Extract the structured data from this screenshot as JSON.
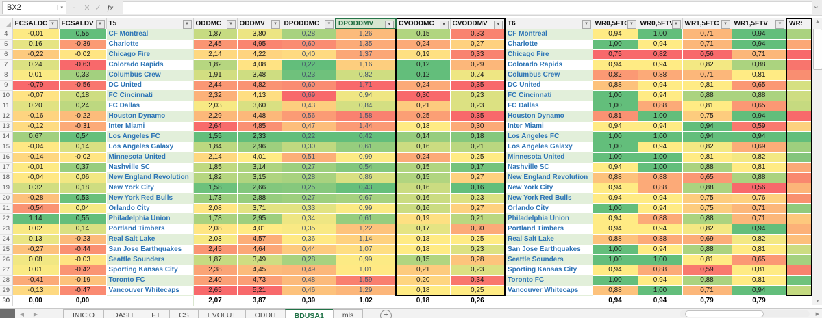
{
  "formula_bar": {
    "name_box": "BX2",
    "cancel_label": "✕",
    "enter_label": "✓",
    "fx_label": "fx",
    "formula_value": ""
  },
  "scale_colors": {
    "red": "#F8696B",
    "yellow": "#FFEB84",
    "green": "#63BE7B",
    "band": "#E2EFDA"
  },
  "columns": [
    {
      "key": "FCSALDC",
      "label": "FCSALDC",
      "kind": "scale",
      "dir": "asc"
    },
    {
      "key": "FCSALDV",
      "label": "FCSALDV",
      "kind": "scale",
      "dir": "asc"
    },
    {
      "key": "T5",
      "label": "T5",
      "kind": "team"
    },
    {
      "key": "ODDMC",
      "label": "ODDMC",
      "kind": "scale",
      "dir": "desc"
    },
    {
      "key": "ODDMV",
      "label": "ODDMV",
      "kind": "scale",
      "dir": "desc"
    },
    {
      "key": "DPODDMC",
      "label": "DPODDMC",
      "kind": "scale",
      "dir": "desc",
      "text_color": "#44546A"
    },
    {
      "key": "DPODDMV",
      "label": "DPODDMV",
      "kind": "scale",
      "dir": "desc",
      "text_color": "#44546A",
      "selected": true
    },
    {
      "key": "CVODDMC",
      "label": "CVODDMC",
      "kind": "scale",
      "dir": "desc",
      "box": "b1",
      "box_edge": "l"
    },
    {
      "key": "CVODDMV",
      "label": "CVODDMV",
      "kind": "scale",
      "dir": "desc",
      "box": "b1",
      "box_edge": "r"
    },
    {
      "key": "T6",
      "label": "T6",
      "kind": "team"
    },
    {
      "key": "WR05FTC",
      "label": "WR0,5FTC",
      "kind": "scale",
      "dir": "asc"
    },
    {
      "key": "WR05FTV",
      "label": "WR0,5FTV",
      "kind": "scale",
      "dir": "asc"
    },
    {
      "key": "WR15FTC",
      "label": "WR1,5FTC",
      "kind": "scale",
      "dir": "asc"
    },
    {
      "key": "WR15FTV",
      "label": "WR1,5FTV",
      "kind": "scale",
      "dir": "asc"
    },
    {
      "key": "WRX",
      "label": "WR:",
      "kind": "colorbar",
      "box": "b2",
      "box_edge": "lr",
      "no_filter": true
    }
  ],
  "rows": [
    {
      "num": "4",
      "FCSALDC": "-0,01",
      "FCSALDV": "0,55",
      "T5": "CF Montreal",
      "ODDMC": "1,87",
      "ODDMV": "3,80",
      "DPODDMC": "0,28",
      "DPODDMV": "1,26",
      "CVODDMC": "0,15",
      "CVODDMV": "0,33",
      "T6": "CF Montreal",
      "WR05FTC": "0,94",
      "WR05FTV": "1,00",
      "WR15FTC": "0,71",
      "WR15FTV": "0,94",
      "WRX": "#aad27f"
    },
    {
      "num": "5",
      "FCSALDC": "0,16",
      "FCSALDV": "-0,39",
      "T5": "Charlotte",
      "ODDMC": "2,45",
      "ODDMV": "4,95",
      "DPODDMC": "0,60",
      "DPODDMV": "1,35",
      "CVODDMC": "0,24",
      "CVODDMV": "0,27",
      "T6": "Charlotte",
      "WR05FTC": "1,00",
      "WR05FTV": "0,94",
      "WR15FTC": "0,71",
      "WR15FTV": "0,94",
      "WRX": "#fba876"
    },
    {
      "num": "6",
      "FCSALDC": "-0,22",
      "FCSALDV": "-0,02",
      "T5": "Chicago Fire",
      "ODDMC": "2,14",
      "ODDMV": "4,22",
      "DPODDMC": "0,40",
      "DPODDMV": "1,37",
      "CVODDMC": "0,19",
      "CVODDMV": "0,33",
      "T6": "Chicago Fire",
      "WR05FTC": "0,75",
      "WR05FTV": "0,82",
      "WR15FTC": "0,56",
      "WR15FTV": "0,71",
      "WRX": "#f8696b"
    },
    {
      "num": "7",
      "FCSALDC": "0,24",
      "FCSALDV": "-0,63",
      "T5": "Colorado Rapids",
      "ODDMC": "1,82",
      "ODDMV": "4,08",
      "DPODDMC": "0,22",
      "DPODDMV": "1,16",
      "CVODDMC": "0,12",
      "CVODDMV": "0,29",
      "T6": "Colorado Rapids",
      "WR05FTC": "0,94",
      "WR05FTV": "0,94",
      "WR15FTC": "0,82",
      "WR15FTV": "0,88",
      "WRX": "#f8756d"
    },
    {
      "num": "8",
      "FCSALDC": "0,01",
      "FCSALDV": "0,33",
      "T5": "Columbus Crew",
      "ODDMC": "1,91",
      "ODDMV": "3,48",
      "DPODDMC": "0,23",
      "DPODDMV": "0,82",
      "CVODDMC": "0,12",
      "CVODDMV": "0,24",
      "T6": "Columbus Crew",
      "WR05FTC": "0,82",
      "WR05FTV": "0,88",
      "WR15FTC": "0,71",
      "WR15FTV": "0,81",
      "WRX": "#f98e71"
    },
    {
      "num": "9",
      "FCSALDC": "-0,79",
      "FCSALDV": "-0,56",
      "T5": "DC United",
      "ODDMC": "2,44",
      "ODDMV": "4,82",
      "DPODDMC": "0,60",
      "DPODDMV": "1,71",
      "CVODDMC": "0,24",
      "CVODDMV": "0,35",
      "T6": "DC United",
      "WR05FTC": "0,88",
      "WR05FTV": "0,94",
      "WR15FTC": "0,81",
      "WR15FTV": "0,65",
      "WRX": "#d6e081"
    },
    {
      "num": "10",
      "FCSALDC": "-0,07",
      "FCSALDV": "0,18",
      "T5": "FC Cincinnati",
      "ODDMC": "2,32",
      "ODDMV": "4,13",
      "DPODDMC": "0,69",
      "DPODDMV": "0,94",
      "CVODDMC": "0,30",
      "CVODDMV": "0,23",
      "T6": "FC Cincinnati",
      "WR05FTC": "1,00",
      "WR05FTV": "0,94",
      "WR15FTC": "0,88",
      "WR15FTV": "0,88",
      "WRX": "#cedd82"
    },
    {
      "num": "11",
      "FCSALDC": "0,20",
      "FCSALDV": "0,24",
      "T5": "FC Dallas",
      "ODDMC": "2,03",
      "ODDMV": "3,60",
      "DPODDMC": "0,43",
      "DPODDMV": "0,84",
      "CVODDMC": "0,21",
      "CVODDMV": "0,23",
      "T6": "FC Dallas",
      "WR05FTC": "1,00",
      "WR05FTV": "0,88",
      "WR15FTC": "0,81",
      "WR15FTV": "0,65",
      "WRX": "#c6da80"
    },
    {
      "num": "12",
      "FCSALDC": "-0,16",
      "FCSALDV": "-0,22",
      "T5": "Houston Dynamo",
      "ODDMC": "2,29",
      "ODDMV": "4,48",
      "DPODDMC": "0,56",
      "DPODDMV": "1,58",
      "CVODDMC": "0,25",
      "CVODDMV": "0,35",
      "T6": "Houston Dynamo",
      "WR05FTC": "0,81",
      "WR05FTV": "1,00",
      "WR15FTC": "0,75",
      "WR15FTV": "0,94",
      "WRX": "#f8696b"
    },
    {
      "num": "13",
      "FCSALDC": "-0,12",
      "FCSALDV": "-0,31",
      "T5": "Inter Miami",
      "ODDMC": "2,64",
      "ODDMV": "4,85",
      "DPODDMC": "0,47",
      "DPODDMV": "1,44",
      "CVODDMC": "0,18",
      "CVODDMV": "0,30",
      "T6": "Inter Miami",
      "WR05FTC": "0,94",
      "WR05FTV": "0,94",
      "WR15FTC": "0,94",
      "WR15FTV": "0,59",
      "WRX": "#fdd17f"
    },
    {
      "num": "14",
      "FCSALDC": "0,67",
      "FCSALDV": "0,54",
      "T5": "Los Angeles FC",
      "ODDMC": "1,55",
      "ODDMV": "2,33",
      "DPODDMC": "0,22",
      "DPODDMV": "0,42",
      "CVODDMC": "0,14",
      "CVODDMV": "0,18",
      "T6": "Los Angeles FC",
      "WR05FTC": "1,00",
      "WR05FTV": "1,00",
      "WR15FTC": "0,94",
      "WR15FTV": "0,94",
      "WRX": "#63be7b"
    },
    {
      "num": "15",
      "FCSALDC": "-0,04",
      "FCSALDV": "0,14",
      "T5": "Los Angeles Galaxy",
      "ODDMC": "1,84",
      "ODDMV": "2,96",
      "DPODDMC": "0,30",
      "DPODDMV": "0,61",
      "CVODDMC": "0,16",
      "CVODDMV": "0,21",
      "T6": "Los Angeles Galaxy",
      "WR05FTC": "1,00",
      "WR05FTV": "0,94",
      "WR15FTC": "0,82",
      "WR15FTV": "0,69",
      "WRX": "#9ecf7e"
    },
    {
      "num": "16",
      "FCSALDC": "-0,14",
      "FCSALDV": "-0,02",
      "T5": "Minnesota United",
      "ODDMC": "2,14",
      "ODDMV": "4,01",
      "DPODDMC": "0,51",
      "DPODDMV": "0,99",
      "CVODDMC": "0,24",
      "CVODDMV": "0,25",
      "T6": "Minnesota United",
      "WR05FTC": "1,00",
      "WR05FTV": "1,00",
      "WR15FTC": "0,81",
      "WR15FTV": "0,82",
      "WRX": "#84c57c"
    },
    {
      "num": "17",
      "FCSALDC": "-0,01",
      "FCSALDV": "0,37",
      "T5": "Nashville SC",
      "ODDMC": "1,85",
      "ODDMV": "3,14",
      "DPODDMC": "0,27",
      "DPODDMV": "0,54",
      "CVODDMC": "0,15",
      "CVODDMV": "0,17",
      "T6": "Nashville SC",
      "WR05FTC": "0,94",
      "WR05FTV": "1,00",
      "WR15FTC": "0,88",
      "WR15FTV": "0,81",
      "WRX": "#fba977"
    },
    {
      "num": "18",
      "FCSALDC": "-0,04",
      "FCSALDV": "0,06",
      "T5": "New England Revolution",
      "ODDMC": "1,82",
      "ODDMV": "3,15",
      "DPODDMC": "0,28",
      "DPODDMV": "0,86",
      "CVODDMC": "0,15",
      "CVODDMV": "0,27",
      "T6": "New England Revolution",
      "WR05FTC": "0,88",
      "WR05FTV": "0,88",
      "WR15FTC": "0,65",
      "WR15FTV": "0,88",
      "WRX": "#f9886f"
    },
    {
      "num": "19",
      "FCSALDC": "0,32",
      "FCSALDV": "0,18",
      "T5": "New York City",
      "ODDMC": "1,58",
      "ODDMV": "2,66",
      "DPODDMC": "0,25",
      "DPODDMV": "0,43",
      "CVODDMC": "0,16",
      "CVODDMV": "0,16",
      "T6": "New York City",
      "WR05FTC": "0,94",
      "WR05FTV": "0,88",
      "WR15FTC": "0,88",
      "WR15FTV": "0,56",
      "WRX": "#fcb579"
    },
    {
      "num": "20",
      "FCSALDC": "-0,28",
      "FCSALDV": "0,53",
      "T5": "New York Red Bulls",
      "ODDMC": "1,73",
      "ODDMV": "2,88",
      "DPODDMC": "0,27",
      "DPODDMV": "0,67",
      "CVODDMC": "0,16",
      "CVODDMV": "0,23",
      "T6": "New York Red Bulls",
      "WR05FTC": "0,94",
      "WR05FTV": "0,94",
      "WR15FTC": "0,75",
      "WR15FTV": "0,76",
      "WRX": "#f9906f"
    },
    {
      "num": "21",
      "FCSALDC": "-0,54",
      "FCSALDV": "0,04",
      "T5": "Orlando City",
      "ODDMC": "2,08",
      "ODDMV": "3,71",
      "DPODDMC": "0,33",
      "DPODDMV": "0,99",
      "CVODDMC": "0,16",
      "CVODDMV": "0,27",
      "T6": "Orlando City",
      "WR05FTC": "1,00",
      "WR05FTV": "0,94",
      "WR15FTC": "0,75",
      "WR15FTV": "0,71",
      "WRX": "#90ca7d"
    },
    {
      "num": "22",
      "FCSALDC": "1,14",
      "FCSALDV": "0,55",
      "T5": "Philadelphia Union",
      "ODDMC": "1,78",
      "ODDMV": "2,95",
      "DPODDMC": "0,34",
      "DPODDMV": "0,61",
      "CVODDMC": "0,19",
      "CVODDMV": "0,21",
      "T6": "Philadelphia Union",
      "WR05FTC": "0,94",
      "WR05FTV": "0,88",
      "WR15FTC": "0,88",
      "WR15FTV": "0,71",
      "WRX": "#fdc87d"
    },
    {
      "num": "23",
      "FCSALDC": "0,02",
      "FCSALDV": "0,14",
      "T5": "Portland Timbers",
      "ODDMC": "2,08",
      "ODDMV": "4,01",
      "DPODDMC": "0,35",
      "DPODDMV": "1,22",
      "CVODDMC": "0,17",
      "CVODDMV": "0,30",
      "T6": "Portland Timbers",
      "WR05FTC": "0,94",
      "WR05FTV": "0,94",
      "WR15FTC": "0,82",
      "WR15FTV": "0,94",
      "WRX": "#fcb178"
    },
    {
      "num": "24",
      "FCSALDC": "0,13",
      "FCSALDV": "-0,23",
      "T5": "Real Salt Lake",
      "ODDMC": "2,03",
      "ODDMV": "4,57",
      "DPODDMC": "0,36",
      "DPODDMV": "1,14",
      "CVODDMC": "0,18",
      "CVODDMV": "0,25",
      "T6": "Real Salt Lake",
      "WR05FTC": "0,88",
      "WR05FTV": "0,88",
      "WR15FTC": "0,69",
      "WR15FTV": "0,82",
      "WRX": "#fdbf7b"
    },
    {
      "num": "25",
      "FCSALDC": "-0,27",
      "FCSALDV": "-0,44",
      "T5": "San Jose Earthquakes",
      "ODDMC": "2,45",
      "ODDMV": "4,64",
      "DPODDMC": "0,44",
      "DPODDMV": "1,07",
      "CVODDMC": "0,18",
      "CVODDMV": "0,23",
      "T6": "San Jose Earthquakes",
      "WR05FTC": "1,00",
      "WR05FTV": "0,94",
      "WR15FTC": "0,88",
      "WR15FTV": "0,81",
      "WRX": "#cddc81"
    },
    {
      "num": "26",
      "FCSALDC": "0,08",
      "FCSALDV": "-0,03",
      "T5": "Seattle Sounders",
      "ODDMC": "1,87",
      "ODDMV": "3,49",
      "DPODDMC": "0,28",
      "DPODDMV": "0,99",
      "CVODDMC": "0,15",
      "CVODDMV": "0,28",
      "T6": "Seattle Sounders",
      "WR05FTC": "1,00",
      "WR05FTV": "1,00",
      "WR15FTC": "0,81",
      "WR15FTV": "0,65",
      "WRX": "#a5d17f"
    },
    {
      "num": "27",
      "FCSALDC": "0,01",
      "FCSALDV": "-0,42",
      "T5": "Sporting Kansas City",
      "ODDMC": "2,38",
      "ODDMV": "4,45",
      "DPODDMC": "0,49",
      "DPODDMV": "1,01",
      "CVODDMC": "0,21",
      "CVODDMV": "0,23",
      "T6": "Sporting Kansas City",
      "WR05FTC": "0,94",
      "WR05FTV": "0,88",
      "WR15FTC": "0,59",
      "WR15FTV": "0,81",
      "WRX": "#f9826e"
    },
    {
      "num": "28",
      "FCSALDC": "-0,41",
      "FCSALDV": "-0,19",
      "T5": "Toronto FC",
      "ODDMC": "2,40",
      "ODDMV": "4,73",
      "DPODDMC": "0,48",
      "DPODDMV": "1,59",
      "CVODDMC": "0,20",
      "CVODDMV": "0,34",
      "T6": "Toronto FC",
      "WR05FTC": "1,00",
      "WR05FTV": "0,94",
      "WR15FTC": "0,88",
      "WR15FTV": "0,81",
      "WRX": "#70c27c"
    },
    {
      "num": "29",
      "FCSALDC": "-0,13",
      "FCSALDV": "-0,47",
      "T5": "Vancouver Whitecaps",
      "ODDMC": "2,65",
      "ODDMV": "5,21",
      "DPODDMC": "0,46",
      "DPODDMV": "1,29",
      "CVODDMC": "0,18",
      "CVODDMV": "0,25",
      "T6": "Vancouver Whitecaps",
      "WR05FTC": "0,88",
      "WR05FTV": "1,00",
      "WR15FTC": "0,71",
      "WR15FTV": "0,94",
      "WRX": "#c3d980"
    }
  ],
  "totals_row": {
    "num": "30",
    "FCSALDC": "0,00",
    "FCSALDV": "0,00",
    "T5": "",
    "ODDMC": "2,07",
    "ODDMV": "3,87",
    "DPODDMC": "0,39",
    "DPODDMV": "1,02",
    "CVODDMC": "0,18",
    "CVODDMV": "0,26",
    "T6": "",
    "WR05FTC": "0,94",
    "WR05FTV": "0,94",
    "WR15FTC": "0,79",
    "WR15FTV": "0,79",
    "WRX": ""
  },
  "tabs": {
    "items": [
      {
        "label": "INICIO"
      },
      {
        "label": "DASH"
      },
      {
        "label": "FT"
      },
      {
        "label": "CS"
      },
      {
        "label": "EVOLUT"
      },
      {
        "label": "ODDH"
      },
      {
        "label": "BDUSA1"
      },
      {
        "label": "mls"
      }
    ],
    "active": "BDUSA1",
    "new_sheet_label": "+"
  }
}
